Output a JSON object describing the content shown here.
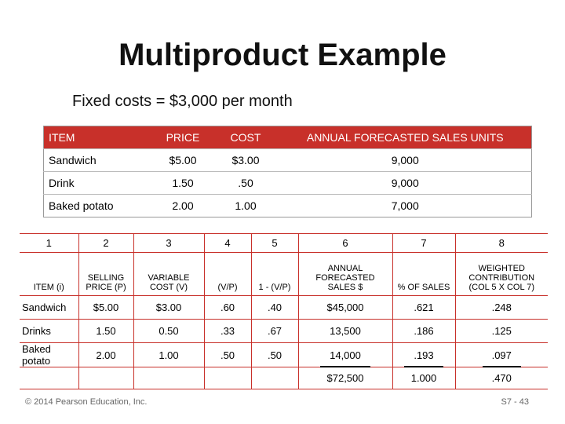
{
  "header": {
    "title": "Multiproduct Example",
    "subtitle": "Fixed costs = $3,000 per month"
  },
  "table1": {
    "columns": [
      "ITEM",
      "PRICE",
      "COST",
      "ANNUAL FORECASTED SALES UNITS"
    ],
    "rows": [
      [
        "Sandwich",
        "$5.00",
        "$3.00",
        "9,000"
      ],
      [
        "Drink",
        "1.50",
        ".50",
        "9,000"
      ],
      [
        "Baked potato",
        "2.00",
        "1.00",
        "7,000"
      ]
    ]
  },
  "table2": {
    "numbers": [
      "1",
      "2",
      "3",
      "4",
      "5",
      "6",
      "7",
      "8"
    ],
    "columns": [
      "ITEM (i)",
      "SELLING PRICE (P)",
      "VARIABLE COST (V)",
      "(V/P)",
      "1 - (V/P)",
      "ANNUAL FORECASTED SALES $",
      "% OF SALES",
      "WEIGHTED CONTRIBUTION (COL 5 X COL 7)"
    ],
    "rows": [
      [
        "Sandwich",
        "$5.00",
        "$3.00",
        ".60",
        ".40",
        "$45,000",
        ".621",
        ".248"
      ],
      [
        "Drinks",
        "1.50",
        "0.50",
        ".33",
        ".67",
        "13,500",
        ".186",
        ".125"
      ],
      [
        "Baked potato",
        "2.00",
        "1.00",
        ".50",
        ".50",
        "14,000",
        ".193",
        ".097"
      ]
    ],
    "totals": [
      "$72,500",
      "1.000",
      ".470"
    ]
  },
  "footer": {
    "copyright": "© 2014 Pearson Education, Inc.",
    "page": "S7 - 43"
  }
}
